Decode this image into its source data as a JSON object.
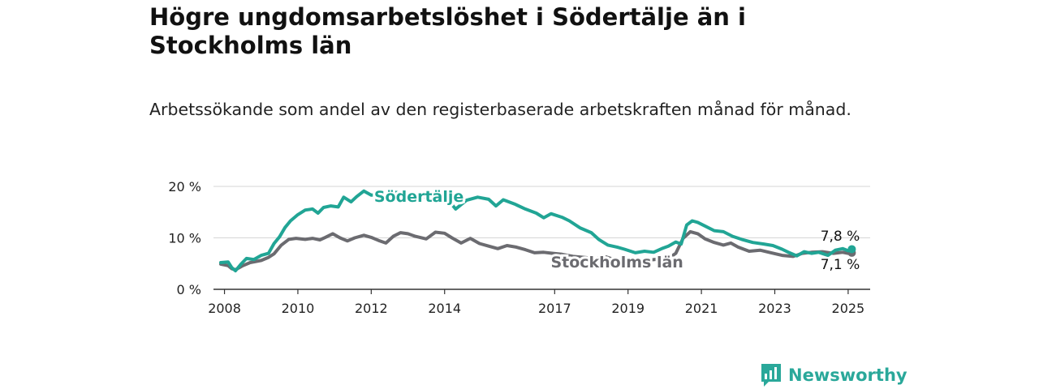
{
  "header": {
    "title": "Högre ungdomsarbetslöshet i Södertälje än i Stockholms län",
    "subtitle": "Arbetssökande som andel av den registerbaserade arbetskraften månad för månad."
  },
  "brand": {
    "name": "Newsworthy",
    "icon": "bar-chart-speech-icon",
    "color": "#2aa89a"
  },
  "chart_data": {
    "type": "line",
    "xlim": [
      2007.7,
      2025.6
    ],
    "ylim": [
      0,
      20
    ],
    "y_ticks": [
      0,
      10,
      20
    ],
    "y_tick_labels": [
      "0 %",
      "10 %",
      "20 %"
    ],
    "x_ticks": [
      2008,
      2010,
      2012,
      2014,
      2017,
      2019,
      2021,
      2023,
      2025
    ],
    "x_tick_labels": [
      "2008",
      "2010",
      "2012",
      "2014",
      "2017",
      "2019",
      "2021",
      "2023",
      "2025"
    ],
    "grid": "horizontal",
    "series": [
      {
        "name": "Södertälje",
        "color": "#21a595",
        "end_label": "7,8 %",
        "points": [
          [
            2007.9,
            5.2
          ],
          [
            2008.1,
            5.3
          ],
          [
            2008.2,
            4.2
          ],
          [
            2008.3,
            3.6
          ],
          [
            2008.45,
            4.9
          ],
          [
            2008.6,
            6.0
          ],
          [
            2008.8,
            5.8
          ],
          [
            2009.0,
            6.6
          ],
          [
            2009.2,
            7.0
          ],
          [
            2009.35,
            8.9
          ],
          [
            2009.5,
            10.2
          ],
          [
            2009.65,
            12.0
          ],
          [
            2009.8,
            13.3
          ],
          [
            2010.0,
            14.5
          ],
          [
            2010.2,
            15.4
          ],
          [
            2010.4,
            15.6
          ],
          [
            2010.55,
            14.8
          ],
          [
            2010.7,
            15.9
          ],
          [
            2010.9,
            16.2
          ],
          [
            2011.1,
            16.0
          ],
          [
            2011.25,
            17.9
          ],
          [
            2011.45,
            17.0
          ],
          [
            2011.6,
            18.0
          ],
          [
            2011.8,
            19.1
          ],
          [
            2012.0,
            18.3
          ],
          [
            2012.2,
            18.4
          ],
          [
            2012.35,
            17.7
          ],
          [
            2012.45,
            18.3
          ],
          [
            2012.6,
            18.9
          ],
          [
            2013.0,
            18.5
          ],
          [
            2013.5,
            17.9
          ],
          [
            2014.0,
            18.2
          ],
          [
            2014.3,
            15.6
          ],
          [
            2014.6,
            17.3
          ],
          [
            2014.9,
            17.9
          ],
          [
            2015.2,
            17.5
          ],
          [
            2015.4,
            16.2
          ],
          [
            2015.6,
            17.4
          ],
          [
            2015.9,
            16.6
          ],
          [
            2016.2,
            15.6
          ],
          [
            2016.5,
            14.8
          ],
          [
            2016.7,
            13.9
          ],
          [
            2016.9,
            14.7
          ],
          [
            2017.2,
            14.0
          ],
          [
            2017.4,
            13.3
          ],
          [
            2017.7,
            11.9
          ],
          [
            2018.0,
            11.0
          ],
          [
            2018.2,
            9.7
          ],
          [
            2018.45,
            8.6
          ],
          [
            2018.7,
            8.2
          ],
          [
            2018.9,
            7.8
          ],
          [
            2019.2,
            7.1
          ],
          [
            2019.45,
            7.4
          ],
          [
            2019.7,
            7.2
          ],
          [
            2019.95,
            8.0
          ],
          [
            2020.1,
            8.4
          ],
          [
            2020.3,
            9.2
          ],
          [
            2020.45,
            8.8
          ],
          [
            2020.6,
            12.5
          ],
          [
            2020.75,
            13.3
          ],
          [
            2020.9,
            13.0
          ],
          [
            2021.1,
            12.3
          ],
          [
            2021.35,
            11.4
          ],
          [
            2021.6,
            11.2
          ],
          [
            2021.85,
            10.3
          ],
          [
            2022.1,
            9.7
          ],
          [
            2022.4,
            9.1
          ],
          [
            2022.7,
            8.8
          ],
          [
            2022.95,
            8.5
          ],
          [
            2023.2,
            7.8
          ],
          [
            2023.4,
            7.1
          ],
          [
            2023.6,
            6.5
          ],
          [
            2023.8,
            7.3
          ],
          [
            2024.0,
            7.0
          ],
          [
            2024.2,
            7.2
          ],
          [
            2024.45,
            6.6
          ],
          [
            2024.65,
            7.6
          ],
          [
            2024.85,
            7.9
          ],
          [
            2025.0,
            7.5
          ],
          [
            2025.1,
            7.8
          ]
        ]
      },
      {
        "name": "Stockholms län",
        "color": "#6b6b70",
        "end_label": "7,1 %",
        "points": [
          [
            2007.9,
            4.9
          ],
          [
            2008.1,
            4.6
          ],
          [
            2008.2,
            4.0
          ],
          [
            2008.3,
            3.8
          ],
          [
            2008.5,
            4.6
          ],
          [
            2008.7,
            5.2
          ],
          [
            2009.0,
            5.6
          ],
          [
            2009.2,
            6.2
          ],
          [
            2009.35,
            6.9
          ],
          [
            2009.55,
            8.6
          ],
          [
            2009.75,
            9.7
          ],
          [
            2009.95,
            9.9
          ],
          [
            2010.2,
            9.7
          ],
          [
            2010.4,
            9.9
          ],
          [
            2010.6,
            9.6
          ],
          [
            2010.75,
            10.1
          ],
          [
            2010.95,
            10.8
          ],
          [
            2011.15,
            10.0
          ],
          [
            2011.35,
            9.4
          ],
          [
            2011.55,
            10.0
          ],
          [
            2011.8,
            10.5
          ],
          [
            2012.0,
            10.1
          ],
          [
            2012.2,
            9.5
          ],
          [
            2012.4,
            9.0
          ],
          [
            2012.6,
            10.3
          ],
          [
            2012.8,
            11.0
          ],
          [
            2013.0,
            10.8
          ],
          [
            2013.2,
            10.3
          ],
          [
            2013.5,
            9.8
          ],
          [
            2013.75,
            11.1
          ],
          [
            2014.0,
            10.9
          ],
          [
            2014.2,
            10.0
          ],
          [
            2014.45,
            9.0
          ],
          [
            2014.7,
            9.9
          ],
          [
            2014.95,
            8.9
          ],
          [
            2015.2,
            8.4
          ],
          [
            2015.45,
            7.9
          ],
          [
            2015.7,
            8.5
          ],
          [
            2015.95,
            8.2
          ],
          [
            2016.2,
            7.7
          ],
          [
            2016.45,
            7.1
          ],
          [
            2016.7,
            7.2
          ],
          [
            2016.95,
            7.0
          ],
          [
            2017.2,
            6.8
          ],
          [
            2017.5,
            6.4
          ],
          [
            2017.8,
            6.2
          ],
          [
            2018.1,
            6.0
          ],
          [
            2018.4,
            6.3
          ],
          [
            2018.7,
            5.6
          ],
          [
            2019.0,
            5.5
          ],
          [
            2019.3,
            5.6
          ],
          [
            2019.6,
            5.7
          ],
          [
            2019.9,
            5.9
          ],
          [
            2020.1,
            6.0
          ],
          [
            2020.3,
            7.0
          ],
          [
            2020.5,
            9.9
          ],
          [
            2020.7,
            11.2
          ],
          [
            2020.9,
            10.8
          ],
          [
            2021.1,
            9.8
          ],
          [
            2021.35,
            9.1
          ],
          [
            2021.6,
            8.6
          ],
          [
            2021.8,
            9.0
          ],
          [
            2022.0,
            8.2
          ],
          [
            2022.3,
            7.4
          ],
          [
            2022.6,
            7.6
          ],
          [
            2022.9,
            7.1
          ],
          [
            2023.2,
            6.6
          ],
          [
            2023.5,
            6.4
          ],
          [
            2023.75,
            7.0
          ],
          [
            2024.0,
            7.2
          ],
          [
            2024.3,
            7.3
          ],
          [
            2024.6,
            7.0
          ],
          [
            2024.85,
            7.2
          ],
          [
            2025.0,
            7.0
          ],
          [
            2025.1,
            7.1
          ]
        ]
      }
    ]
  }
}
